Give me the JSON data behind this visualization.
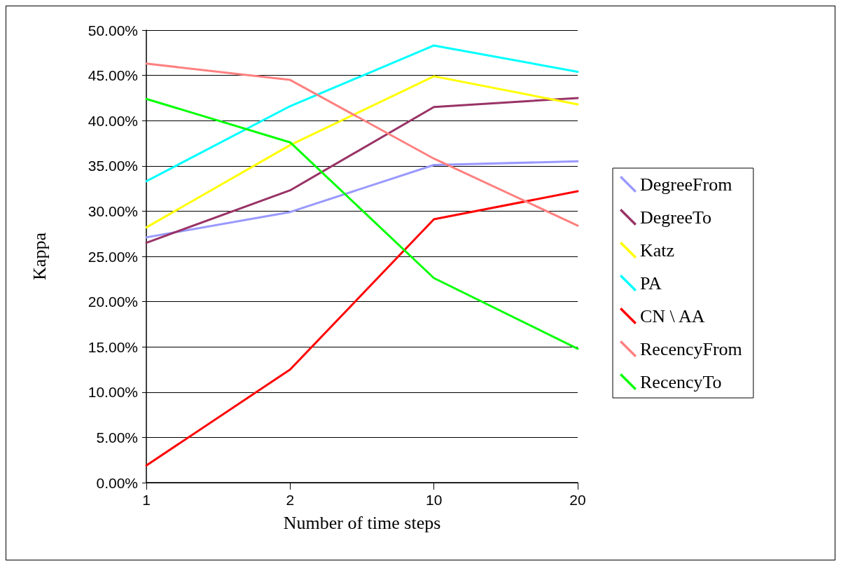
{
  "chart_data": {
    "type": "line",
    "xlabel": "Number of time steps",
    "ylabel": "Kappa",
    "categories": [
      "1",
      "2",
      "10",
      "20"
    ],
    "ylim": [
      0,
      50
    ],
    "yticks": [
      {
        "value": 0,
        "label": "0.00%"
      },
      {
        "value": 5,
        "label": "5.00%"
      },
      {
        "value": 10,
        "label": "10.00%"
      },
      {
        "value": 15,
        "label": "15.00%"
      },
      {
        "value": 20,
        "label": "20.00%"
      },
      {
        "value": 25,
        "label": "25.00%"
      },
      {
        "value": 30,
        "label": "30.00%"
      },
      {
        "value": 35,
        "label": "35.00%"
      },
      {
        "value": 40,
        "label": "40.00%"
      },
      {
        "value": 45,
        "label": "45.00%"
      },
      {
        "value": 50,
        "label": "50.00%"
      }
    ],
    "grid": "y",
    "legend": "right",
    "marker": "none",
    "line_style": "solid",
    "series": [
      {
        "name": "DegreeFrom",
        "color": "#9999ff",
        "values": [
          27.1,
          29.9,
          35.1,
          35.5
        ]
      },
      {
        "name": "DegreeTo",
        "color": "#993366",
        "values": [
          26.5,
          32.3,
          41.5,
          42.5
        ]
      },
      {
        "name": "Katz",
        "color": "#ffff00",
        "values": [
          28.2,
          37.3,
          44.9,
          41.8
        ]
      },
      {
        "name": "PA",
        "color": "#00ffff",
        "values": [
          33.3,
          41.6,
          48.3,
          45.4
        ]
      },
      {
        "name": "CN \\ AA",
        "color": "#ff0000",
        "values": [
          1.9,
          12.5,
          29.1,
          32.2
        ]
      },
      {
        "name": "RecencyFrom",
        "color": "#ff8080",
        "values": [
          46.3,
          44.5,
          35.8,
          28.4
        ]
      },
      {
        "name": "RecencyTo",
        "color": "#00ff00",
        "values": [
          42.4,
          37.6,
          22.6,
          14.8
        ]
      }
    ]
  }
}
